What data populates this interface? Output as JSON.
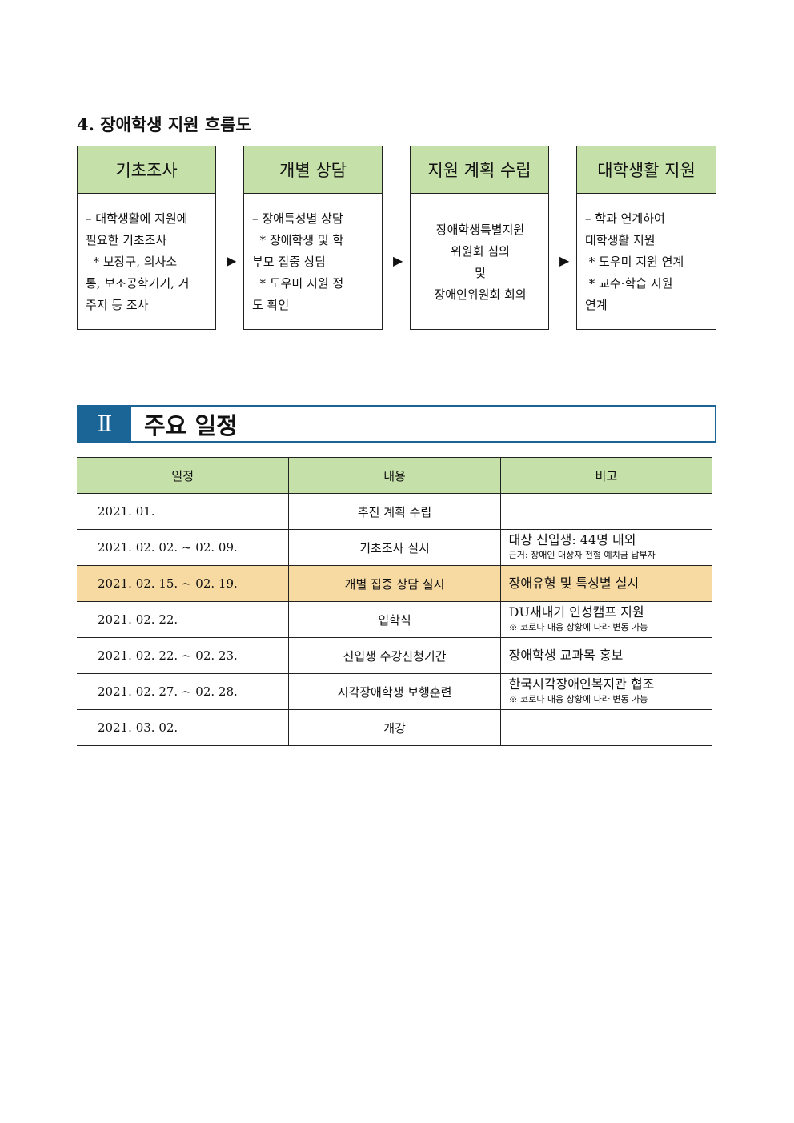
{
  "flow": {
    "title": "4. 장애학생 지원 흐름도",
    "steps": [
      {
        "head": "기초조사",
        "body": "– 대학생활에 지원에\n필요한 기초조사\n  * 보장구, 의사소\n통, 보조공학기기, 거\n주지 등 조사"
      },
      {
        "head": "개별 상담",
        "body": "– 장애특성별 상담\n  * 장애학생 및 학\n부모 집중 상담\n  * 도우미 지원 정\n도 확인"
      },
      {
        "head": "지원 계획 수립",
        "body": "장애학생특별지원\n위원회 심의\n및\n장애인위원회 회의"
      },
      {
        "head": "대학생활 지원",
        "body": "– 학과 연계하여\n대학생활 지원\n * 도우미 지원 연계\n * 교수·학습 지원\n연계"
      }
    ],
    "arrow": "▶"
  },
  "section": {
    "number": "Ⅱ",
    "title": "주요 일정"
  },
  "schedule": {
    "headers": [
      "일정",
      "내용",
      "비고"
    ],
    "rows": [
      {
        "date": "2021. 01.",
        "content": "추진 계획 수립",
        "note_main": "",
        "note_sub": ""
      },
      {
        "date": "2021. 02. 02. ~ 02. 09.",
        "content": "기초조사 실시",
        "note_main": "대상 신입생: 44명 내외",
        "note_sub": "근거: 장애인 대상자 전형 예치금 납부자"
      },
      {
        "date": "2021. 02. 15. ~ 02. 19.",
        "content": "개별 집중 상담 실시",
        "note_main": "장애유형 및 특성별 실시",
        "note_sub": "",
        "highlight": true
      },
      {
        "date": "2021. 02. 22.",
        "content": "입학식",
        "note_main": "DU새내기 인성캠프 지원",
        "note_sub": "※ 코로나 대응 상황에 다라 변동 가능"
      },
      {
        "date": "2021. 02. 22. ~ 02. 23.",
        "content": "신입생 수강신청기간",
        "note_main": "장애학생 교과목 홍보",
        "note_sub": ""
      },
      {
        "date": "2021. 02. 27. ~ 02. 28.",
        "content": "시각장애학생 보행훈련",
        "note_main": "한국시각장애인복지관 협조",
        "note_sub": "※ 코로나 대응 상황에 다라 변동 가능"
      },
      {
        "date": "2021. 03. 02.",
        "content": "개강",
        "note_main": "",
        "note_sub": ""
      }
    ],
    "colors": {
      "header": "#c5e0a8",
      "highlight": "#f7d9a2",
      "section": "#1a6496"
    }
  }
}
